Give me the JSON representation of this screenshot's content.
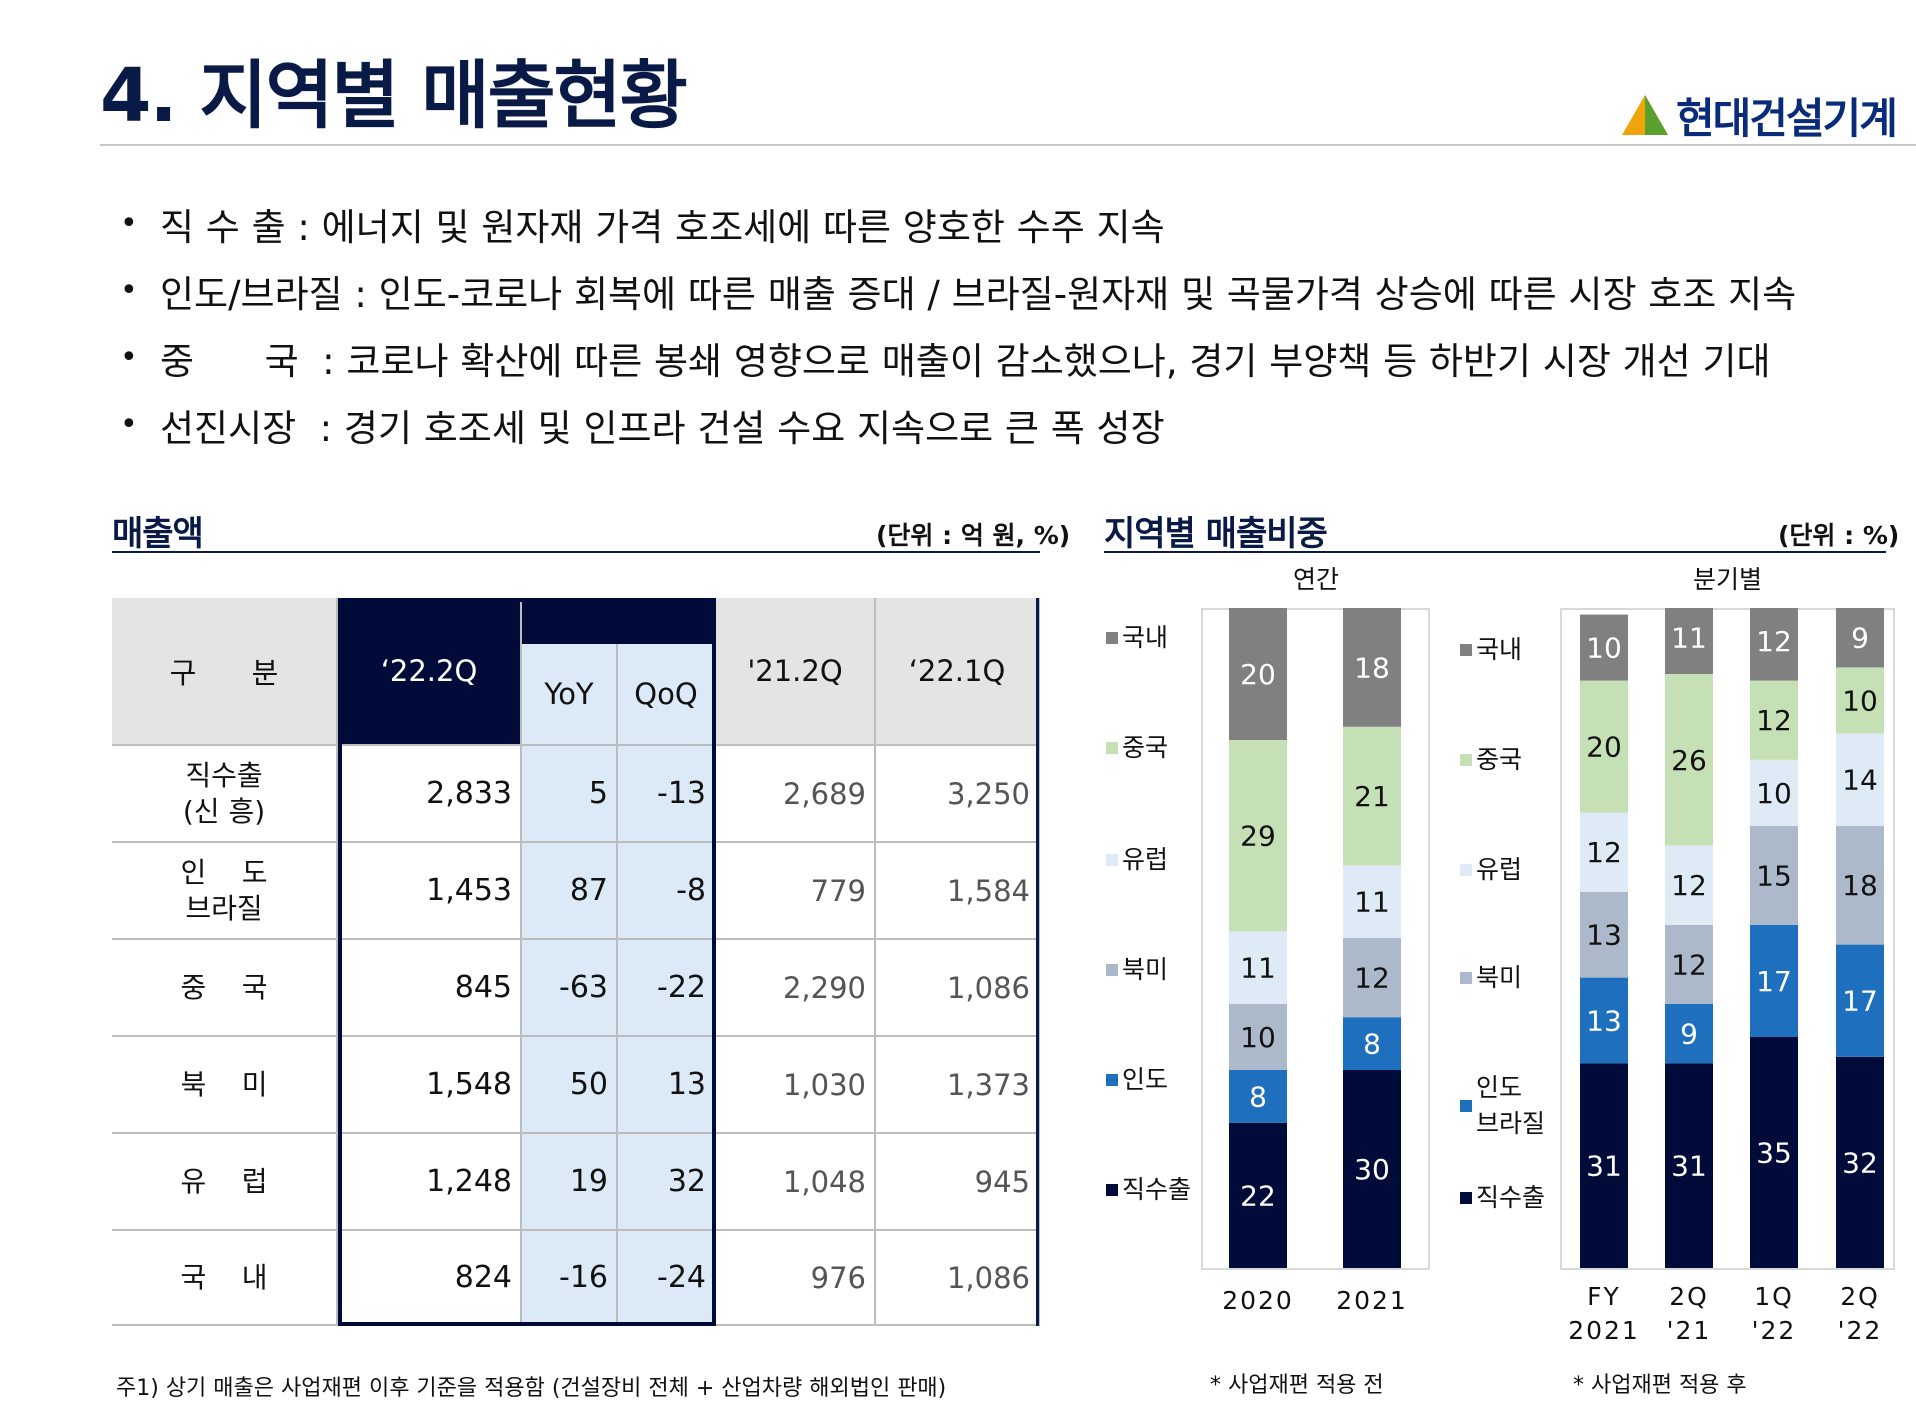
{
  "page_title": "4. 지역별 매출현황",
  "logo_text": "현대건설기계",
  "colors": {
    "navy": "#000b3a",
    "accent_green": "#5aa02c",
    "accent_orange": "#f0a30a"
  },
  "bullets": [
    {
      "key": "직 수 출 :",
      "text": " 에너지 및 원자재 가격 호조세에 따른 양호한 수주 지속"
    },
    {
      "key": "인도/브라질 :",
      "text": " 인도-코로나 회복에 따른 매출 증대 / 브라질-원자재 및 곡물가격 상승에 따른 시장 호조 지속"
    },
    {
      "key": "중      국  :",
      "text": " 코로나 확산에 따른 봉쇄 영향으로 매출이 감소했으나, 경기 부양책 등 하반기 시장 개선 기대"
    },
    {
      "key": "선진시장  :",
      "text": " 경기 호조세 및 인프라 건설 수요 지속으로 큰 폭 성장"
    }
  ],
  "sales": {
    "title": "매출액",
    "unit": "(단위 : 억 원, %)",
    "headers": {
      "category": "구      분",
      "cur": "‘22.2Q",
      "yoy": "YoY",
      "qoq": "QoQ",
      "prev_year": "'21.2Q",
      "prev_q": "‘22.1Q"
    },
    "rows": [
      {
        "label": "직수출\n(신 흥)",
        "cur": "2,833",
        "yoy": "5",
        "qoq": "-13",
        "prev_year": "2,689",
        "prev_q": "3,250"
      },
      {
        "label": "인    도\n브라질",
        "cur": "1,453",
        "yoy": "87",
        "qoq": "-8",
        "prev_year": "779",
        "prev_q": "1,584"
      },
      {
        "label": "중    국",
        "cur": "845",
        "yoy": "-63",
        "qoq": "-22",
        "prev_year": "2,290",
        "prev_q": "1,086"
      },
      {
        "label": "북    미",
        "cur": "1,548",
        "yoy": "50",
        "qoq": "13",
        "prev_year": "1,030",
        "prev_q": "1,373"
      },
      {
        "label": "유    럽",
        "cur": "1,248",
        "yoy": "19",
        "qoq": "32",
        "prev_year": "1,048",
        "prev_q": "945"
      },
      {
        "label": "국    내",
        "cur": "824",
        "yoy": "-16",
        "qoq": "-24",
        "prev_year": "976",
        "prev_q": "1,086"
      }
    ],
    "note": "주1) 상기 매출은 사업재편 이후 기준을 적용함 (건설장비 전체 + 산업차량 해외법인 판매)"
  },
  "share": {
    "title": "지역별 매출비중",
    "unit": "(단위 : %)",
    "annual_label": "연간",
    "quarterly_label": "분기별",
    "note_before": "* 사업재편 적용 전",
    "note_after": "* 사업재편 적용 후"
  },
  "chart_data": [
    {
      "type": "bar",
      "stacked": true,
      "title": "연간",
      "categories": [
        "2020",
        "2021"
      ],
      "series": [
        {
          "name": "직수출",
          "color": "#000b3a",
          "values": [
            22,
            30
          ]
        },
        {
          "name": "인도",
          "color": "#1f6fbf",
          "values": [
            8,
            8
          ]
        },
        {
          "name": "북미",
          "color": "#acb9ca",
          "values": [
            10,
            12
          ]
        },
        {
          "name": "유럽",
          "color": "#deebf7",
          "values": [
            11,
            11
          ]
        },
        {
          "name": "중국",
          "color": "#c5e0b4",
          "values": [
            29,
            21
          ]
        },
        {
          "name": "국내",
          "color": "#808080",
          "values": [
            20,
            18
          ]
        }
      ],
      "legend_labels": [
        "국내",
        "중국",
        "유럽",
        "북미",
        "인도",
        "직수출"
      ]
    },
    {
      "type": "bar",
      "stacked": true,
      "title": "분기별",
      "categories": [
        "FY\n2021",
        "2Q\n'21",
        "1Q\n'22",
        "2Q\n'22"
      ],
      "series": [
        {
          "name": "직수출",
          "color": "#000b3a",
          "values": [
            31,
            31,
            35,
            32
          ]
        },
        {
          "name": "인도 브라질",
          "color": "#1f6fbf",
          "values": [
            13,
            9,
            17,
            17
          ]
        },
        {
          "name": "북미",
          "color": "#acb9ca",
          "values": [
            13,
            12,
            15,
            18
          ]
        },
        {
          "name": "유럽",
          "color": "#deebf7",
          "values": [
            12,
            12,
            10,
            14
          ]
        },
        {
          "name": "중국",
          "color": "#c5e0b4",
          "values": [
            20,
            26,
            12,
            10
          ]
        },
        {
          "name": "국내",
          "color": "#808080",
          "values": [
            10,
            11,
            12,
            9
          ]
        }
      ],
      "legend_labels": [
        "국내",
        "중국",
        "유럽",
        "북미",
        "인도\n브라질",
        "직수출"
      ]
    }
  ]
}
